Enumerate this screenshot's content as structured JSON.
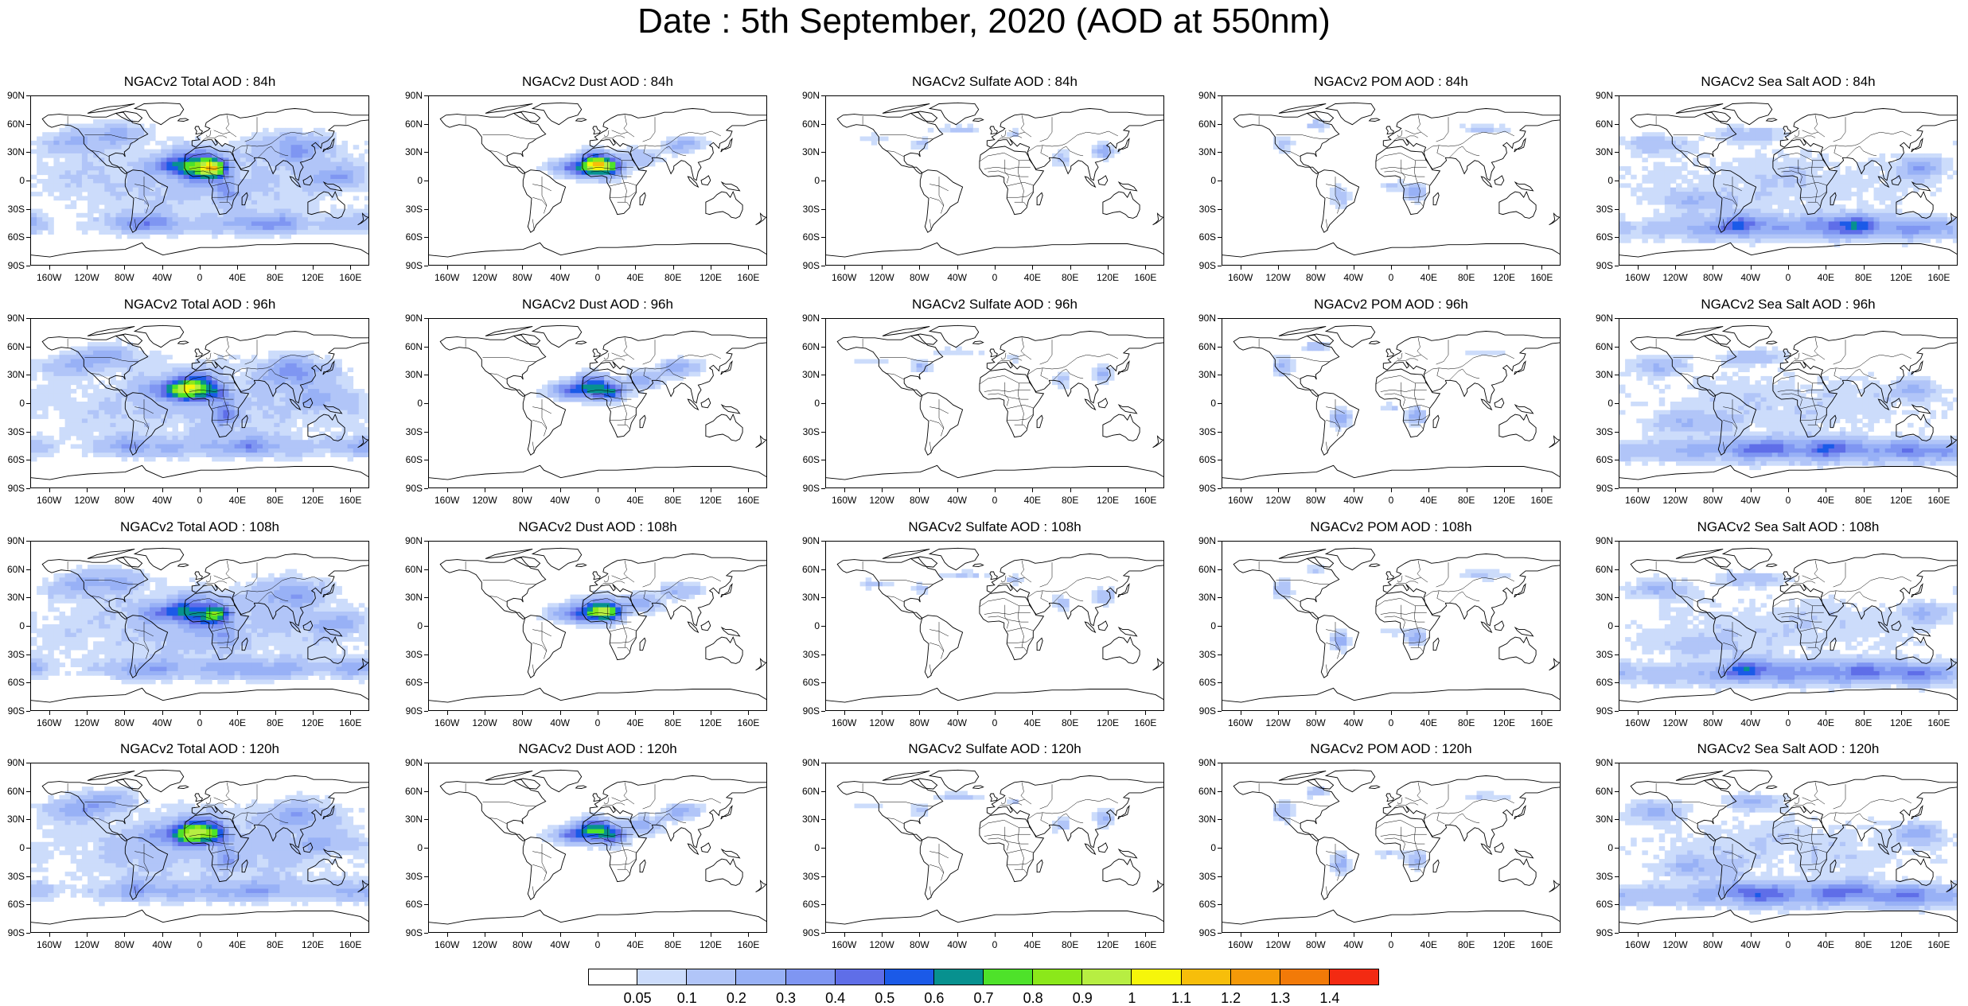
{
  "title": "Date : 5th September, 2020 (AOD at 550nm)",
  "lat_labels": [
    "90N",
    "60N",
    "30N",
    "0",
    "30S",
    "60S",
    "90S"
  ],
  "lon_labels": [
    "160W",
    "120W",
    "80W",
    "40W",
    "0",
    "40E",
    "80E",
    "120E",
    "160E"
  ],
  "lon_values": [
    -160,
    -120,
    -80,
    -40,
    0,
    40,
    80,
    120,
    160
  ],
  "lat_values": [
    90,
    60,
    30,
    0,
    -30,
    -60,
    -90
  ],
  "panel_titles": [
    [
      "NGACv2 Total AOD : 84h",
      "NGACv2 Dust AOD : 84h",
      "NGACv2 Sulfate AOD : 84h",
      "NGACv2 POM AOD : 84h",
      "NGACv2 Sea Salt AOD : 84h"
    ],
    [
      "NGACv2 Total AOD : 96h",
      "NGACv2 Dust AOD : 96h",
      "NGACv2 Sulfate AOD : 96h",
      "NGACv2 POM AOD : 96h",
      "NGACv2 Sea Salt AOD : 96h"
    ],
    [
      "NGACv2 Total AOD : 108h",
      "NGACv2 Dust AOD : 108h",
      "NGACv2 Sulfate AOD : 108h",
      "NGACv2 POM AOD : 108h",
      "NGACv2 Sea Salt AOD : 108h"
    ],
    [
      "NGACv2 Total AOD : 120h",
      "NGACv2 Dust AOD : 120h",
      "NGACv2 Sulfate AOD : 120h",
      "NGACv2 POM AOD : 120h",
      "NGACv2 Sea Salt  AOD : 120h"
    ]
  ],
  "field_types": [
    "total",
    "dust",
    "sulfate",
    "pom",
    "seasalt"
  ],
  "colorbar": {
    "colors": [
      "#ffffff",
      "#ccdcfb",
      "#b1c5f8",
      "#98b1f6",
      "#7f96f2",
      "#5f6ee8",
      "#1b5ae8",
      "#07918f",
      "#4ee22a",
      "#8be81a",
      "#b7ee42",
      "#f6f60a",
      "#f7be0a",
      "#f59a08",
      "#f27a08",
      "#f32a12"
    ],
    "labels": [
      "0.05",
      "0.1",
      "0.2",
      "0.3",
      "0.4",
      "0.5",
      "0.6",
      "0.7",
      "0.8",
      "0.9",
      "1",
      "1.1",
      "1.2",
      "1.3",
      "1.4"
    ]
  }
}
